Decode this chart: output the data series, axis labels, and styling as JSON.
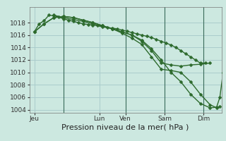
{
  "background_color": "#cce8e0",
  "grid_color": "#aacccc",
  "line_color": "#2d6a2d",
  "marker": "D",
  "marker_size": 2.5,
  "linewidth": 1.0,
  "ylim": [
    1003.5,
    1020.5
  ],
  "yticks": [
    1004,
    1006,
    1008,
    1010,
    1012,
    1014,
    1016,
    1018
  ],
  "xlabel": "Pression niveau de la mer( hPa )",
  "xlabel_fontsize": 8,
  "tick_fontsize": 6.5,
  "xtick_labels": [
    "Jeu",
    "Lun",
    "Ven",
    "Sam",
    "Dim"
  ],
  "xtick_positions": [
    0,
    40,
    56,
    80,
    104
  ],
  "vline_positions": [
    18,
    56,
    80,
    104
  ],
  "xlim": [
    -3,
    115
  ],
  "s1_x": [
    0,
    3,
    6,
    9,
    12,
    15,
    18,
    21,
    24,
    27,
    30,
    33,
    36,
    39,
    42,
    45,
    48,
    51,
    54,
    57,
    60,
    63,
    66,
    69,
    72,
    75,
    78,
    81,
    84,
    87,
    90,
    93,
    96,
    99,
    102,
    105
  ],
  "s1_y": [
    1016.5,
    1017.8,
    1018.3,
    1019.2,
    1019.1,
    1018.9,
    1018.6,
    1018.4,
    1018.2,
    1018.0,
    1017.8,
    1017.7,
    1017.6,
    1017.5,
    1017.3,
    1017.2,
    1017.1,
    1017.0,
    1016.8,
    1016.6,
    1016.4,
    1016.2,
    1016.0,
    1015.8,
    1015.6,
    1015.3,
    1015.0,
    1014.7,
    1014.4,
    1014.0,
    1013.5,
    1013.0,
    1012.5,
    1012.0,
    1011.5,
    1011.5
  ],
  "s2_x": [
    12,
    18,
    24,
    30,
    36,
    42,
    48,
    54,
    60,
    66,
    72,
    78,
    84,
    90,
    96,
    102,
    108
  ],
  "s2_y": [
    1019.2,
    1018.8,
    1018.5,
    1018.2,
    1017.8,
    1017.4,
    1017.0,
    1016.5,
    1016.0,
    1015.0,
    1013.5,
    1011.5,
    1011.2,
    1011.0,
    1011.2,
    1011.3,
    1011.5
  ],
  "s3_x": [
    0,
    6,
    12,
    18,
    24,
    30,
    36,
    42,
    48,
    54,
    60,
    66,
    72,
    78,
    84,
    90,
    96,
    102,
    108,
    112,
    114,
    116
  ],
  "s3_y": [
    1016.5,
    1017.8,
    1018.8,
    1019.0,
    1018.8,
    1018.4,
    1018.0,
    1017.5,
    1017.0,
    1016.5,
    1016.0,
    1015.2,
    1013.8,
    1012.0,
    1010.0,
    1008.5,
    1006.5,
    1005.0,
    1004.3,
    1004.4,
    1006.0,
    1010.0
  ],
  "s4_x": [
    0,
    6,
    12,
    18,
    24,
    30,
    36,
    42,
    48,
    54,
    60,
    66,
    72,
    78,
    84,
    90,
    96,
    102,
    108,
    112,
    114
  ],
  "s4_y": [
    1016.5,
    1017.8,
    1018.8,
    1019.0,
    1018.8,
    1018.4,
    1018.0,
    1017.5,
    1017.0,
    1016.3,
    1015.5,
    1014.5,
    1012.5,
    1010.5,
    1010.3,
    1010.0,
    1008.5,
    1006.5,
    1004.8,
    1004.3,
    1004.5
  ]
}
